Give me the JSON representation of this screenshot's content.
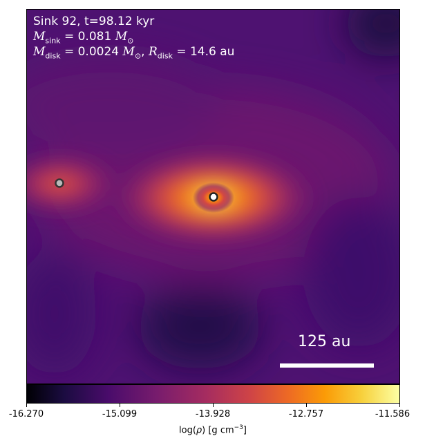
{
  "title": "Sink 92, t=98.12 kyr",
  "m_sink_label": "M",
  "m_sink_sub": "sink",
  "m_sink_value": "= 0.081",
  "m_sun_sub": "⊙",
  "m_disk_label": "M",
  "m_disk_sub": "disk",
  "m_disk_value": "= 0.0024",
  "r_disk_label": "R",
  "r_disk_sub": "disk",
  "r_disk_value": "= 14.6 au",
  "scale_bar_label": "125 au",
  "colorbar": {
    "ticks": [
      "-16.270",
      "-15.099",
      "-13.928",
      "-12.757",
      "-11.586"
    ],
    "label_pre": "log(",
    "label_rho": "ρ",
    "label_post": ") [g cm",
    "label_exp": "−3",
    "label_end": "]"
  },
  "colors": {
    "colormap": "inferno",
    "sink_marker": "#ffffff"
  }
}
